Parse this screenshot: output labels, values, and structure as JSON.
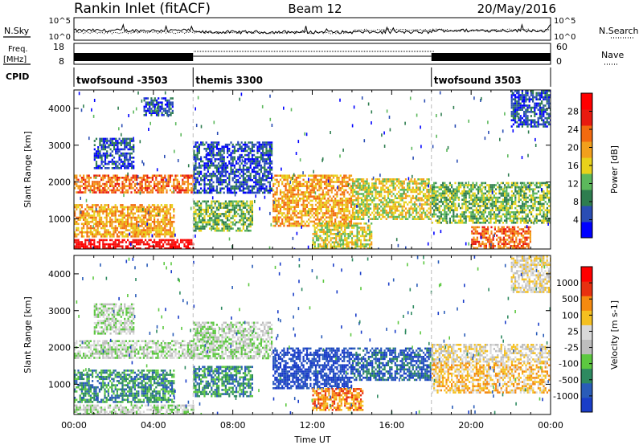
{
  "header": {
    "station": "Rankin Inlet (fitACF)",
    "beam": "Beam 12",
    "date": "20/May/2016"
  },
  "top_panels": {
    "nsky_label": "N.Sky",
    "nsky_ticks": [
      "10^5",
      "10^0"
    ],
    "nsearch_label": "N.Search",
    "nsearch_ticks": [
      "10^5",
      "10^0"
    ],
    "freq_label": "Freq.",
    "freq_unit": "[MHz]",
    "freq_ticks": [
      "18",
      "8"
    ],
    "nave_label": "Nave",
    "nave_ticks": [
      "60",
      "0"
    ],
    "cpid_label": "CPID",
    "cpid_segments": [
      {
        "label": "twofsound -3503",
        "start_h": 0,
        "end_h": 6
      },
      {
        "label": "themis 3300",
        "start_h": 6,
        "end_h": 18
      },
      {
        "label": "twofsound 3503",
        "start_h": 18,
        "end_h": 24
      }
    ]
  },
  "chart_data": [
    {
      "type": "heatmap",
      "title": "Power",
      "ylabel": "Slant Range [km]",
      "xlabel": "",
      "x_range_hours": [
        0,
        24
      ],
      "ylim": [
        180,
        4500
      ],
      "yticks": [
        "1000",
        "2000",
        "3000",
        "4000"
      ],
      "colorbar": {
        "label": "Power [dB]",
        "ticks": [
          "28",
          "24",
          "20",
          "16",
          "12",
          "8",
          "4"
        ],
        "colors": [
          "#0000ff",
          "#2a4db4",
          "#2e7d4f",
          "#5cb85c",
          "#e8d21a",
          "#f2a01c",
          "#f26a10",
          "#e81a10",
          "#ff0000"
        ]
      },
      "regions": [
        {
          "t0": 0.0,
          "t1": 6.0,
          "r0": 180,
          "r1": 450,
          "level": 8
        },
        {
          "t0": 0.0,
          "t1": 5.0,
          "r0": 500,
          "r1": 1400,
          "level": 5
        },
        {
          "t0": 0.0,
          "t1": 6.0,
          "r0": 1700,
          "r1": 2200,
          "level": 6
        },
        {
          "t0": 1.0,
          "t1": 3.0,
          "r0": 2400,
          "r1": 3200,
          "level": 1
        },
        {
          "t0": 3.5,
          "t1": 5.0,
          "r0": 3800,
          "r1": 4300,
          "level": 1
        },
        {
          "t0": 6.0,
          "t1": 9.0,
          "r0": 700,
          "r1": 1500,
          "level": 3
        },
        {
          "t0": 6.0,
          "t1": 10.0,
          "r0": 1700,
          "r1": 3100,
          "level": 1
        },
        {
          "t0": 10.0,
          "t1": 14.0,
          "r0": 800,
          "r1": 2200,
          "level": 5
        },
        {
          "t0": 12.0,
          "t1": 15.0,
          "r0": 200,
          "r1": 900,
          "level": 4
        },
        {
          "t0": 14.0,
          "t1": 18.0,
          "r0": 1000,
          "r1": 2100,
          "level": 4
        },
        {
          "t0": 18.0,
          "t1": 24.0,
          "r0": 900,
          "r1": 2000,
          "level": 3
        },
        {
          "t0": 20.0,
          "t1": 23.0,
          "r0": 200,
          "r1": 800,
          "level": 6
        },
        {
          "t0": 22.0,
          "t1": 24.0,
          "r0": 3500,
          "r1": 4500,
          "level": 1
        }
      ]
    },
    {
      "type": "heatmap",
      "title": "Velocity",
      "ylabel": "Slant Range [km]",
      "xlabel": "Time UT",
      "x_range_hours": [
        0,
        24
      ],
      "xticks": [
        "00:00",
        "04:00",
        "08:00",
        "12:00",
        "16:00",
        "20:00",
        "00:00"
      ],
      "ylim": [
        180,
        4500
      ],
      "yticks": [
        "1000",
        "2000",
        "3000",
        "4000"
      ],
      "colorbar": {
        "label": "Velocity [m s-1]",
        "ticks": [
          "1000",
          "500",
          "100",
          "25",
          "-25",
          "-100",
          "-500",
          "-1000"
        ],
        "colors": [
          "#1a3dc8",
          "#2a5cb8",
          "#2e8a60",
          "#5cc840",
          "#bdbdbd",
          "#d9d9d9",
          "#f5c020",
          "#f58a10",
          "#e83010",
          "#ff0000"
        ]
      },
      "regions": [
        {
          "t0": 0.0,
          "t1": 6.0,
          "r0": 180,
          "r1": 450,
          "level": 4
        },
        {
          "t0": 0.0,
          "t1": 5.0,
          "r0": 500,
          "r1": 1400,
          "level": 2
        },
        {
          "t0": 0.0,
          "t1": 6.0,
          "r0": 1700,
          "r1": 2200,
          "level": 4
        },
        {
          "t0": 1.0,
          "t1": 3.0,
          "r0": 2400,
          "r1": 3200,
          "level": 4
        },
        {
          "t0": 6.0,
          "t1": 9.0,
          "r0": 700,
          "r1": 1500,
          "level": 2
        },
        {
          "t0": 6.0,
          "t1": 10.0,
          "r0": 1700,
          "r1": 2700,
          "level": 4
        },
        {
          "t0": 10.0,
          "t1": 14.0,
          "r0": 900,
          "r1": 2000,
          "level": 0
        },
        {
          "t0": 12.0,
          "t1": 14.5,
          "r0": 300,
          "r1": 900,
          "level": 7
        },
        {
          "t0": 14.0,
          "t1": 18.0,
          "r0": 1100,
          "r1": 2000,
          "level": 1
        },
        {
          "t0": 18.0,
          "t1": 24.0,
          "r0": 800,
          "r1": 1600,
          "level": 6
        },
        {
          "t0": 18.0,
          "t1": 24.0,
          "r0": 1600,
          "r1": 2100,
          "level": 5
        },
        {
          "t0": 22.0,
          "t1": 24.0,
          "r0": 3500,
          "r1": 4500,
          "level": 5
        }
      ]
    }
  ]
}
